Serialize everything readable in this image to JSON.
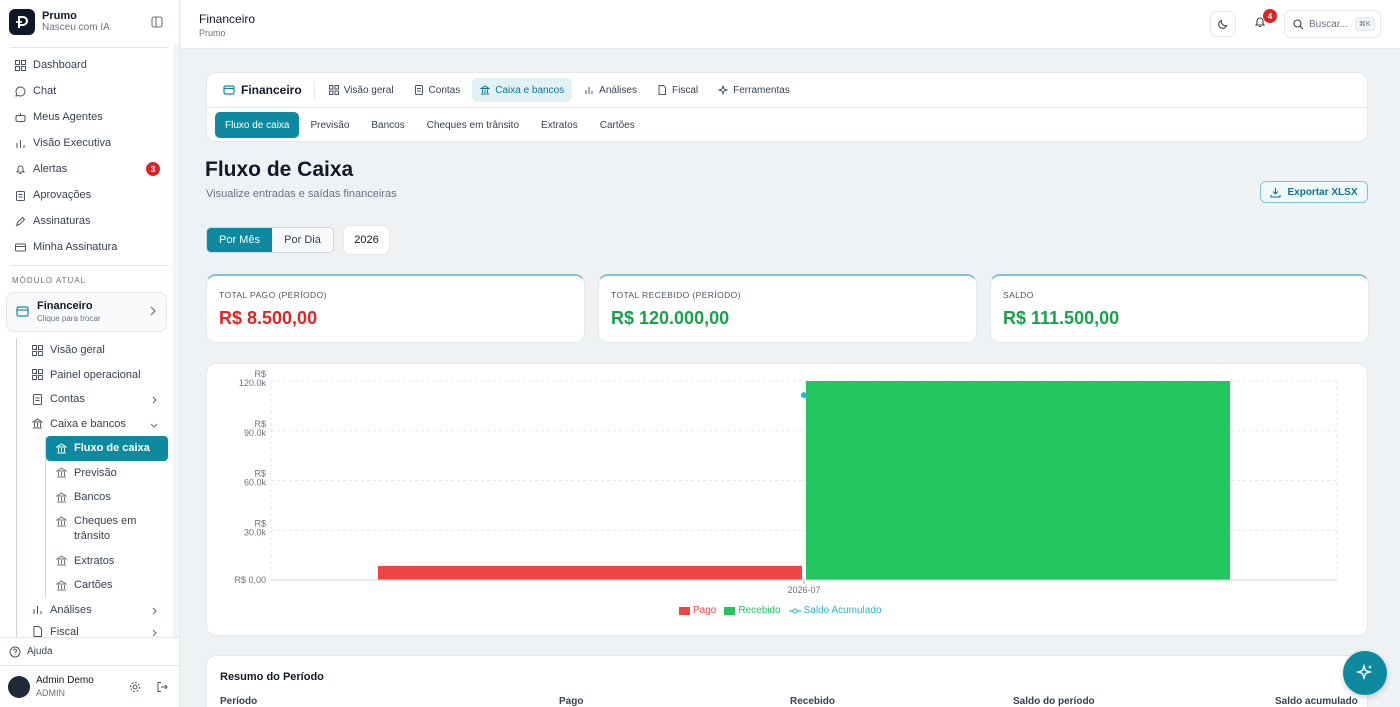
{
  "brand": {
    "name": "Prumo",
    "tagline": "Nasceu com IA"
  },
  "nav": [
    {
      "label": "Dashboard",
      "icon": "grid-icon"
    },
    {
      "label": "Chat",
      "icon": "chat-icon"
    },
    {
      "label": "Meus Agentes",
      "icon": "bot-icon"
    },
    {
      "label": "Visão Executiva",
      "icon": "bar-chart-icon"
    },
    {
      "label": "Alertas",
      "icon": "bell-icon",
      "badge": "3"
    },
    {
      "label": "Aprovações",
      "icon": "clipboard-icon"
    },
    {
      "label": "Assinaturas",
      "icon": "pen-icon"
    },
    {
      "label": "Minha Assinatura",
      "icon": "card-icon"
    }
  ],
  "module": {
    "section_label": "MÓDULO ATUAL",
    "title": "Financeiro",
    "subtitle": "Clique para trocar"
  },
  "subnav": {
    "visao_geral": "Visão geral",
    "painel": "Painel operacional",
    "contas": "Contas",
    "caixa": "Caixa e bancos",
    "caixa_items": [
      "Fluxo de caixa",
      "Previsão",
      "Bancos",
      "Cheques em trânsito",
      "Extratos",
      "Cartões"
    ],
    "analises": "Análises",
    "fiscal": "Fiscal"
  },
  "footer": {
    "help": "Ajuda",
    "user_name": "Admin Demo",
    "user_role": "ADMIN"
  },
  "header": {
    "title": "Financeiro",
    "subtitle": "Prumo",
    "notifications": "4",
    "search_placeholder": "Buscar...",
    "search_kbd": "⌘K"
  },
  "tabs": {
    "main": "Financeiro",
    "items": [
      "Visão geral",
      "Contas",
      "Caixa e bancos",
      "Análises",
      "Fiscal",
      "Ferramentas"
    ],
    "active": "Caixa e bancos",
    "subtabs": [
      "Fluxo de caixa",
      "Previsão",
      "Bancos",
      "Cheques em trânsito",
      "Extratos",
      "Cartões"
    ],
    "active_subtab": "Fluxo de caixa"
  },
  "page": {
    "title": "Fluxo de Caixa",
    "subtitle": "Visualize entradas e saídas financeiras",
    "export_label": "Exportar XLSX"
  },
  "filters": {
    "by_month": "Por Mês",
    "by_day": "Por Dia",
    "year": "2026"
  },
  "stats": [
    {
      "label": "TOTAL PAGO (PERÍODO)",
      "value": "R$ 8.500,00",
      "color": "#dc2626"
    },
    {
      "label": "TOTAL RECEBIDO (PERÍODO)",
      "value": "R$ 120.000,00",
      "color": "#16a34a"
    },
    {
      "label": "SALDO",
      "value": "R$ 111.500,00",
      "color": "#16a34a"
    }
  ],
  "chart_data": {
    "type": "bar",
    "categories": [
      "2026-07"
    ],
    "series": [
      {
        "name": "Pago",
        "values": [
          8500
        ],
        "color": "#ef4444"
      },
      {
        "name": "Recebido",
        "values": [
          120000
        ],
        "color": "#22c55e"
      },
      {
        "name": "Saldo Acumulado",
        "values": [
          111500
        ],
        "color": "#22b8cf",
        "kind": "line"
      }
    ],
    "yticks": [
      "R$ 0,00",
      "R$ 30.0k",
      "R$ 60.0k",
      "R$ 90.0k",
      "R$ 120.0k"
    ],
    "ylim": [
      0,
      120000
    ],
    "grid": true,
    "legend": "bottom"
  },
  "summary": {
    "title": "Resumo do Período",
    "columns": [
      "Período",
      "Pago",
      "Recebido",
      "Saldo do período",
      "Saldo acumulado"
    ]
  }
}
